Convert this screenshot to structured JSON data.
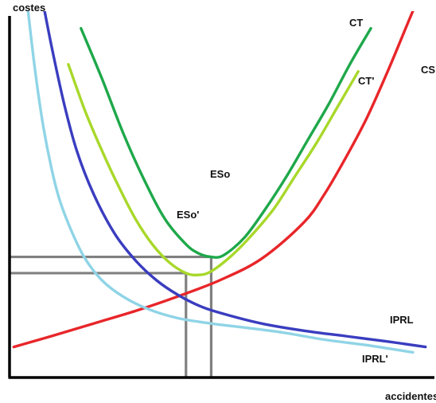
{
  "chart_data": {
    "type": "line",
    "title": "",
    "ylabel": "costes",
    "xlabel": "accidentes",
    "xlim": [
      0,
      100
    ],
    "ylim": [
      0,
      100
    ],
    "grid": false,
    "series": [
      {
        "name": "CT",
        "color": "#1ea84a",
        "x": [
          17,
          22,
          27,
          32,
          37,
          42,
          45,
          48,
          51,
          56,
          61,
          66,
          71,
          76,
          81,
          86
        ],
        "y": [
          97,
          83,
          68,
          55,
          44,
          37,
          34.5,
          33.5,
          34,
          39,
          47,
          56,
          66,
          76,
          87,
          97
        ]
      },
      {
        "name": "CT'",
        "color": "#a8d82a",
        "x": [
          14,
          18,
          22,
          26,
          30,
          34,
          38,
          42,
          45,
          48,
          53,
          58,
          63,
          68,
          73,
          78,
          83
        ],
        "y": [
          87,
          74,
          63,
          53,
          44,
          37,
          32,
          29,
          28.5,
          29.5,
          34,
          40,
          47,
          56,
          65,
          75,
          85
        ]
      },
      {
        "name": "CS",
        "color": "#e8262a",
        "x": [
          1,
          10,
          20,
          30,
          40,
          50,
          60,
          70,
          75,
          80,
          85,
          90,
          95,
          99
        ],
        "y": [
          8.5,
          11.5,
          15,
          18.5,
          22.5,
          27,
          33,
          43,
          51,
          61,
          72,
          85,
          99,
          110
        ]
      },
      {
        "name": "IPRL",
        "color": "#3a3dbf",
        "x": [
          7,
          10,
          13,
          16,
          20,
          25,
          30,
          35,
          40,
          45,
          50,
          60,
          70,
          80,
          90,
          99
        ],
        "y": [
          110,
          92,
          76,
          63,
          51,
          40,
          32.5,
          27,
          23,
          20,
          18,
          15,
          13,
          11.5,
          10,
          8.5
        ]
      },
      {
        "name": "IPRL'",
        "color": "#8fd4e6",
        "x": [
          4,
          6,
          8,
          10,
          12,
          15,
          18,
          22,
          27,
          33,
          40,
          48,
          55,
          65,
          75,
          85,
          96
        ],
        "y": [
          106,
          86,
          70,
          58,
          49,
          40,
          33,
          27,
          22.5,
          19,
          16.5,
          15,
          14,
          12.5,
          10.5,
          9,
          7
        ]
      }
    ],
    "annotations": [
      "ESo",
      "ESo'"
    ],
    "reference_points": [
      {
        "label": "ESo",
        "x": 48,
        "y": 33.5
      },
      {
        "label": "ESo'",
        "x": 42,
        "y": 29
      }
    ]
  }
}
